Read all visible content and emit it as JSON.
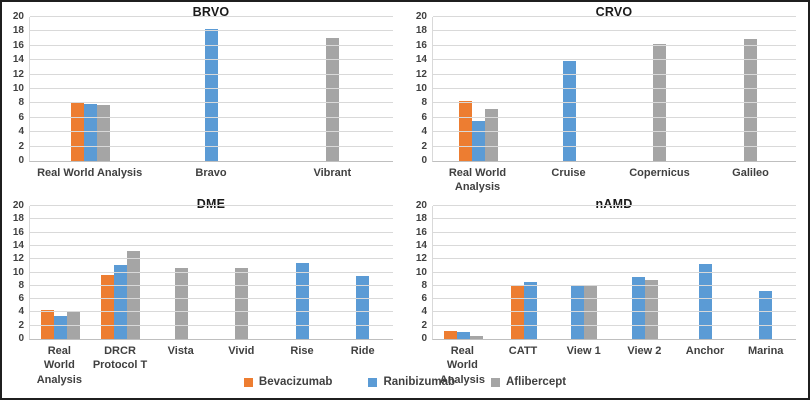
{
  "figure": {
    "description": "Four grouped bar charts comparing anti-VEGF agents across studies",
    "panels": [
      "BRVO",
      "CRVO",
      "DME",
      "nAMD"
    ]
  },
  "legend": {
    "items": [
      {
        "label": "Bevacizumab",
        "color": "#ED7D31"
      },
      {
        "label": "Ranibizumab",
        "color": "#5B9BD5"
      },
      {
        "label": "Aflibercept",
        "color": "#A5A5A5"
      }
    ]
  },
  "style_colors": {
    "gridline": "#D9D9D9",
    "axis_line": "#BFBFBF",
    "text": "#404040"
  },
  "chart_data": [
    {
      "type": "bar",
      "title": "BRVO",
      "ylim": [
        0,
        20
      ],
      "ytick_step": 2,
      "grid": true,
      "legend_position": "bottom-shared",
      "categories": [
        "Real World Analysis",
        "Bravo",
        "Vibrant"
      ],
      "groups": [
        {
          "category": "Real World Analysis",
          "bars": [
            {
              "series": "Bevacizumab",
              "value": 8.2
            },
            {
              "series": "Ranibizumab",
              "value": 7.9
            },
            {
              "series": "Aflibercept",
              "value": 7.8
            }
          ]
        },
        {
          "category": "Bravo",
          "bars": [
            {
              "series": "Ranibizumab",
              "value": 18.3
            }
          ]
        },
        {
          "category": "Vibrant",
          "bars": [
            {
              "series": "Aflibercept",
              "value": 17.1
            }
          ]
        }
      ]
    },
    {
      "type": "bar",
      "title": "CRVO",
      "ylim": [
        0,
        20
      ],
      "ytick_step": 2,
      "grid": true,
      "legend_position": "bottom-shared",
      "categories": [
        "Real World Analysis",
        "Cruise",
        "Copernicus",
        "Galileo"
      ],
      "groups": [
        {
          "category": "Real World Analysis",
          "bars": [
            {
              "series": "Bevacizumab",
              "value": 8.4
            },
            {
              "series": "Ranibizumab",
              "value": 5.6
            },
            {
              "series": "Aflibercept",
              "value": 7.2
            }
          ]
        },
        {
          "category": "Cruise",
          "bars": [
            {
              "series": "Ranibizumab",
              "value": 13.9
            }
          ]
        },
        {
          "category": "Copernicus",
          "bars": [
            {
              "series": "Aflibercept",
              "value": 16.2
            }
          ]
        },
        {
          "category": "Galileo",
          "bars": [
            {
              "series": "Aflibercept",
              "value": 16.9
            }
          ]
        }
      ]
    },
    {
      "type": "bar",
      "title": "DME",
      "ylim": [
        0,
        20
      ],
      "ytick_step": 2,
      "grid": true,
      "legend_position": "bottom-shared",
      "categories": [
        "Real World Analysis",
        "DRCR Protocol T",
        "Vista",
        "Vivid",
        "Rise",
        "Ride"
      ],
      "groups": [
        {
          "category": "Real World Analysis",
          "bars": [
            {
              "series": "Bevacizumab",
              "value": 4.4
            },
            {
              "series": "Ranibizumab",
              "value": 3.4
            },
            {
              "series": "Aflibercept",
              "value": 4.2
            }
          ]
        },
        {
          "category": "DRCR Protocol T",
          "bars": [
            {
              "series": "Bevacizumab",
              "value": 9.7
            },
            {
              "series": "Ranibizumab",
              "value": 11.2
            },
            {
              "series": "Aflibercept",
              "value": 13.3
            }
          ]
        },
        {
          "category": "Vista",
          "bars": [
            {
              "series": "Aflibercept",
              "value": 10.7
            }
          ]
        },
        {
          "category": "Vivid",
          "bars": [
            {
              "series": "Aflibercept",
              "value": 10.7
            }
          ]
        },
        {
          "category": "Rise",
          "bars": [
            {
              "series": "Ranibizumab",
              "value": 11.5
            }
          ]
        },
        {
          "category": "Ride",
          "bars": [
            {
              "series": "Ranibizumab",
              "value": 9.5
            }
          ]
        }
      ]
    },
    {
      "type": "bar",
      "title": "nAMD",
      "ylim": [
        0,
        20
      ],
      "ytick_step": 2,
      "grid": true,
      "legend_position": "bottom-shared",
      "categories": [
        "Real World Analysis",
        "CATT",
        "View 1",
        "View 2",
        "Anchor",
        "Marina"
      ],
      "groups": [
        {
          "category": "Real World Analysis",
          "bars": [
            {
              "series": "Bevacizumab",
              "value": 1.2
            },
            {
              "series": "Ranibizumab",
              "value": 1.1
            },
            {
              "series": "Aflibercept",
              "value": 0.4
            }
          ]
        },
        {
          "category": "CATT",
          "bars": [
            {
              "series": "Bevacizumab",
              "value": 8.0
            },
            {
              "series": "Ranibizumab",
              "value": 8.5
            }
          ]
        },
        {
          "category": "View 1",
          "bars": [
            {
              "series": "Ranibizumab",
              "value": 8.1
            },
            {
              "series": "Aflibercept",
              "value": 7.9
            }
          ]
        },
        {
          "category": "View 2",
          "bars": [
            {
              "series": "Ranibizumab",
              "value": 9.4
            },
            {
              "series": "Aflibercept",
              "value": 8.9
            }
          ]
        },
        {
          "category": "Anchor",
          "bars": [
            {
              "series": "Ranibizumab",
              "value": 11.3
            }
          ]
        },
        {
          "category": "Marina",
          "bars": [
            {
              "series": "Ranibizumab",
              "value": 7.2
            }
          ]
        }
      ]
    }
  ]
}
